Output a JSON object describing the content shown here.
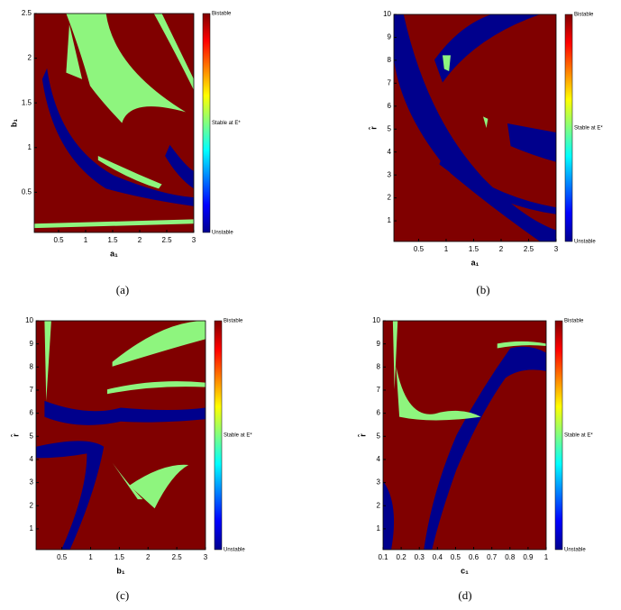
{
  "chart_data": [
    {
      "type": "heatmap",
      "caption": "(a)",
      "xlabel": "a₁",
      "ylabel": "b₁",
      "xlim": [
        0.05,
        3
      ],
      "xticks": [
        0.5,
        1,
        1.5,
        2,
        2.5,
        3
      ],
      "ylim": [
        0.05,
        2.5
      ],
      "yticks": [
        0.5,
        1,
        1.5,
        2,
        2.5
      ],
      "colorbar": [
        "Bistable",
        "Stable at E*",
        "Unstable"
      ]
    },
    {
      "type": "heatmap",
      "caption": "(b)",
      "xlabel": "a₁",
      "ylabel": "r̂",
      "xlim": [
        0.05,
        3
      ],
      "xticks": [
        0.5,
        1,
        1.5,
        2,
        2.5,
        3
      ],
      "ylim": [
        0.1,
        10
      ],
      "yticks": [
        1,
        2,
        3,
        4,
        5,
        6,
        7,
        8,
        9,
        10
      ],
      "colorbar": [
        "Bistable",
        "Stable at E*",
        "Unstable"
      ]
    },
    {
      "type": "heatmap",
      "caption": "(c)",
      "xlabel": "b₁",
      "ylabel": "r̂",
      "xlim": [
        0.05,
        3
      ],
      "xticks": [
        0.5,
        1,
        1.5,
        2,
        2.5,
        3
      ],
      "ylim": [
        0.1,
        10
      ],
      "yticks": [
        1,
        2,
        3,
        4,
        5,
        6,
        7,
        8,
        9,
        10
      ],
      "colorbar": [
        "Bistable",
        "Stable at E*",
        "Unstable"
      ]
    },
    {
      "type": "heatmap",
      "caption": "(d)",
      "xlabel": "c₁",
      "ylabel": "r̂",
      "xlim": [
        0.1,
        1
      ],
      "xticks": [
        0.1,
        0.2,
        0.3,
        0.4,
        0.5,
        0.6,
        0.7,
        0.8,
        0.9,
        1
      ],
      "ylim": [
        0.1,
        10
      ],
      "yticks": [
        1,
        2,
        3,
        4,
        5,
        6,
        7,
        8,
        9,
        10
      ],
      "colorbar": [
        "Bistable",
        "Stable at E*",
        "Unstable"
      ]
    }
  ]
}
